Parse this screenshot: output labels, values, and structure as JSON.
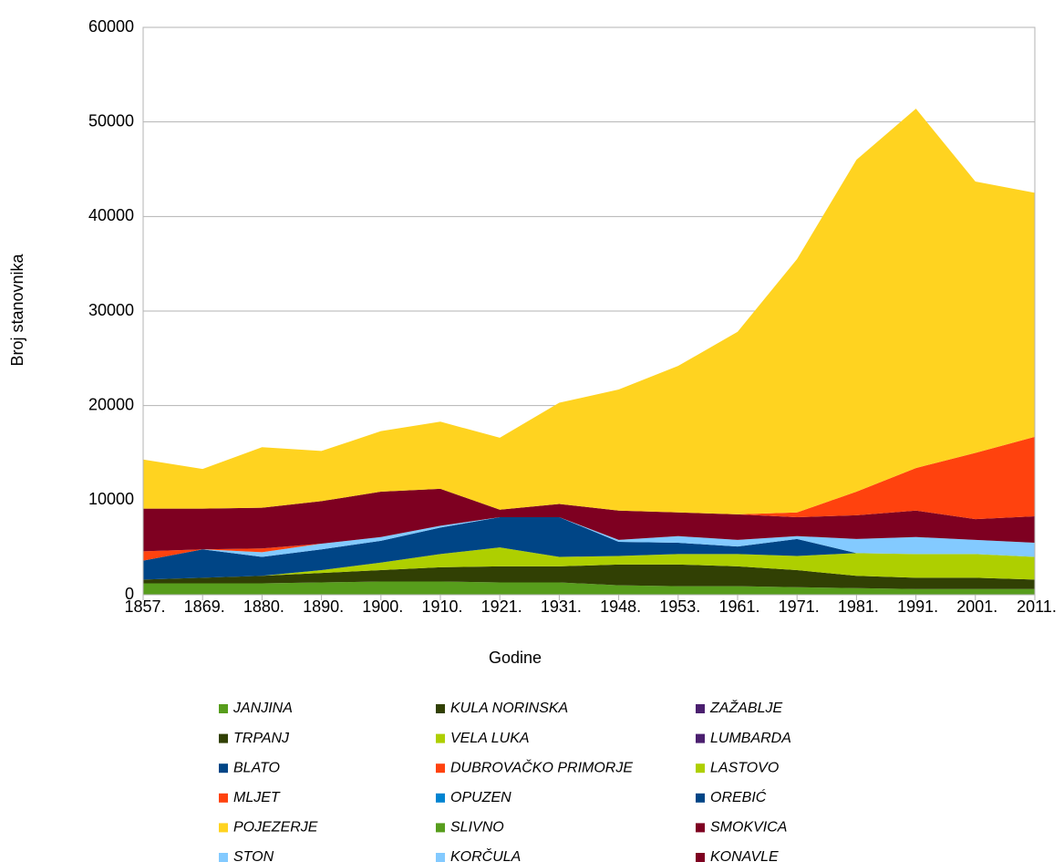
{
  "chart_data": {
    "type": "stacked-area",
    "x_label": "Godine",
    "y_label": "Broj stanovnika",
    "categories": [
      "1857.",
      "1869.",
      "1880.",
      "1890.",
      "1900.",
      "1910.",
      "1921.",
      "1931.",
      "1948.",
      "1953.",
      "1961.",
      "1971.",
      "1981.",
      "1991.",
      "2001.",
      "2011."
    ],
    "ylim": [
      0,
      60000
    ],
    "yticks": [
      0,
      10000,
      20000,
      30000,
      40000,
      50000,
      60000
    ],
    "grid": true,
    "series": [
      {
        "name": "JANJINA",
        "color": "#579d1c",
        "values": [
          1200,
          1200,
          1200,
          1300,
          1400,
          1400,
          1300,
          1300,
          1000,
          900,
          900,
          800,
          700,
          600,
          600,
          600
        ]
      },
      {
        "name": "TRPANJ",
        "color": "#314004",
        "values": [
          400,
          600,
          800,
          1000,
          1200,
          1500,
          1700,
          1700,
          2200,
          2300,
          2100,
          1800,
          1300,
          1200,
          1200,
          1000
        ]
      },
      {
        "name": "VELA LUKA",
        "color": "#aecf00",
        "values": [
          0,
          0,
          0,
          300,
          800,
          1400,
          2000,
          1000,
          900,
          1100,
          1300,
          1500,
          2400,
          2500,
          2500,
          2400
        ]
      },
      {
        "name": "BLATO",
        "color": "#004586",
        "values": [
          2000,
          3000,
          2000,
          2200,
          2300,
          2800,
          3200,
          4200,
          1500,
          1200,
          800,
          1800,
          0,
          0,
          0,
          0
        ]
      },
      {
        "name": "STON",
        "color": "#83caff",
        "values": [
          0,
          0,
          500,
          600,
          400,
          200,
          0,
          0,
          200,
          700,
          700,
          300,
          1500,
          1800,
          1500,
          1500
        ]
      },
      {
        "name": "MLJET",
        "color": "#ff420e",
        "values": [
          1000,
          0,
          400,
          0,
          0,
          0,
          0,
          0,
          0,
          0,
          0,
          0,
          0,
          0,
          0,
          0
        ]
      },
      {
        "name": "KONAVLE",
        "color": "#7e0021",
        "values": [
          4500,
          4300,
          4300,
          4500,
          4800,
          3900,
          800,
          1400,
          3100,
          2500,
          2700,
          2000,
          2500,
          2800,
          2200,
          2800
        ]
      },
      {
        "name": "DUBROVAČKO PRIMORJE",
        "color": "#ff420e",
        "values": [
          0,
          0,
          0,
          0,
          0,
          0,
          0,
          0,
          0,
          0,
          0,
          500,
          2500,
          4500,
          7000,
          8400
        ]
      },
      {
        "name": "POJEZERJE",
        "color": "#ffd320",
        "values": [
          5200,
          4200,
          6400,
          5300,
          6400,
          7100,
          7600,
          10700,
          12800,
          15500,
          19300,
          26800,
          35100,
          38000,
          28700,
          25800
        ]
      },
      {
        "name": "KULA NORINSKA",
        "color": "#314004",
        "values": [
          0,
          0,
          0,
          0,
          0,
          0,
          0,
          0,
          0,
          0,
          0,
          0,
          0,
          0,
          0,
          0
        ]
      },
      {
        "name": "ZAŽABLJE",
        "color": "#4b1f6f",
        "values": [
          0,
          0,
          0,
          0,
          0,
          0,
          0,
          0,
          0,
          0,
          0,
          0,
          0,
          0,
          0,
          0
        ]
      },
      {
        "name": "LUMBARDA",
        "color": "#4b1f6f",
        "values": [
          0,
          0,
          0,
          0,
          0,
          0,
          0,
          0,
          0,
          0,
          0,
          0,
          0,
          0,
          0,
          0
        ]
      },
      {
        "name": "LASTOVO",
        "color": "#aecf00",
        "values": [
          0,
          0,
          0,
          0,
          0,
          0,
          0,
          0,
          0,
          0,
          0,
          0,
          0,
          0,
          0,
          0
        ]
      },
      {
        "name": "OPUZEN",
        "color": "#0084d1",
        "values": [
          0,
          0,
          0,
          0,
          0,
          0,
          0,
          0,
          0,
          0,
          0,
          0,
          0,
          0,
          0,
          0
        ]
      },
      {
        "name": "OREBIĆ",
        "color": "#004586",
        "values": [
          0,
          0,
          0,
          0,
          0,
          0,
          0,
          0,
          0,
          0,
          0,
          0,
          0,
          0,
          0,
          0
        ]
      },
      {
        "name": "SLIVNO",
        "color": "#579d1c",
        "values": [
          0,
          0,
          0,
          0,
          0,
          0,
          0,
          0,
          0,
          0,
          0,
          0,
          0,
          0,
          0,
          0
        ]
      },
      {
        "name": "SMOKVICA",
        "color": "#7e0021",
        "values": [
          0,
          0,
          0,
          0,
          0,
          0,
          0,
          0,
          0,
          0,
          0,
          0,
          0,
          0,
          0,
          0
        ]
      },
      {
        "name": "KORČULA",
        "color": "#83caff",
        "values": [
          0,
          0,
          0,
          0,
          0,
          0,
          0,
          0,
          0,
          0,
          0,
          0,
          0,
          0,
          0,
          0
        ]
      }
    ]
  }
}
